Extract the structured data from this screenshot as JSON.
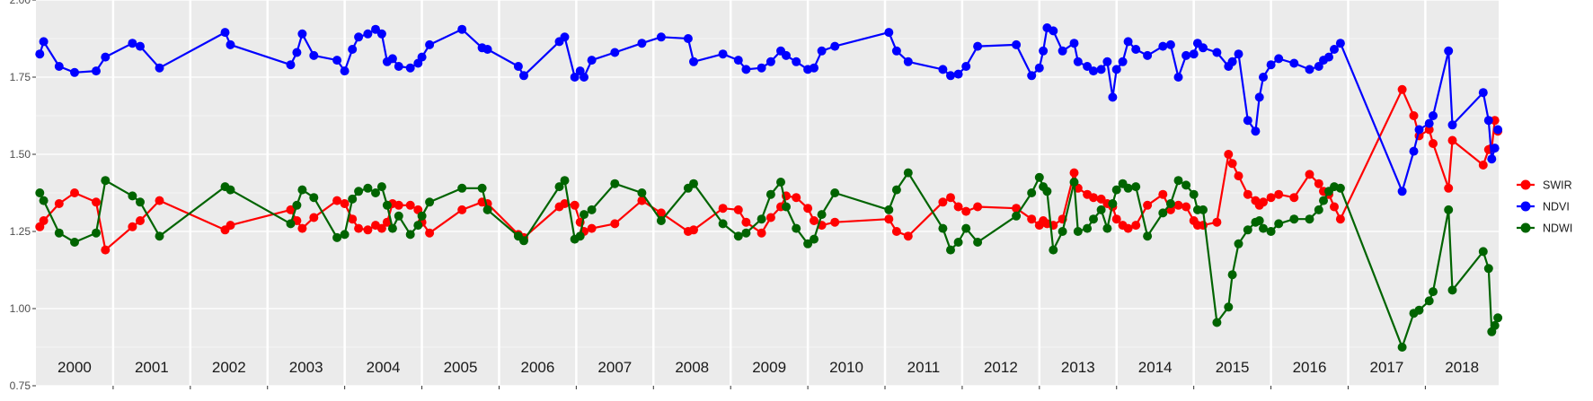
{
  "chart_data": {
    "type": "line",
    "title": "",
    "xlabel": "",
    "ylabel": "",
    "ylim": [
      0.75,
      2.0
    ],
    "yticks": [
      "0.75",
      "1.00",
      "1.25",
      "1.50",
      "1.75",
      "2.00"
    ],
    "xlim": [
      2000.0,
      2018.95
    ],
    "year_labels": [
      "2000",
      "2001",
      "2002",
      "2003",
      "2004",
      "2005",
      "2006",
      "2007",
      "2008",
      "2009",
      "2010",
      "2011",
      "2012",
      "2013",
      "2014",
      "2015",
      "2016",
      "2017",
      "2018"
    ],
    "grid": true,
    "legend_position": "right",
    "colors": {
      "panel": "#EBEBEB",
      "gridline": "#FFFFFF",
      "text": "#1A1A1A",
      "axis": "#333333"
    },
    "series": [
      {
        "name": "SWIR",
        "color": "#FF0000",
        "x": [
          2000.05,
          2000.1,
          2000.3,
          2000.5,
          2000.78,
          2000.9,
          2001.25,
          2001.35,
          2001.6,
          2002.45,
          2002.52,
          2003.3,
          2003.38,
          2003.45,
          2003.6,
          2003.9,
          2004.0,
          2004.1,
          2004.18,
          2004.3,
          2004.4,
          2004.48,
          2004.55,
          2004.62,
          2004.7,
          2004.85,
          2004.95,
          2005.0,
          2005.1,
          2005.52,
          2005.78,
          2005.85,
          2006.25,
          2006.32,
          2006.78,
          2006.85,
          2006.98,
          2007.05,
          2007.1,
          2007.2,
          2007.5,
          2007.85,
          2008.1,
          2008.45,
          2008.52,
          2008.9,
          2009.1,
          2009.2,
          2009.4,
          2009.52,
          2009.65,
          2009.72,
          2009.85,
          2010.0,
          2010.08,
          2010.18,
          2010.35,
          2011.05,
          2011.15,
          2011.3,
          2011.75,
          2011.85,
          2011.95,
          2012.05,
          2012.2,
          2012.7,
          2012.9,
          2013.0,
          2013.05,
          2013.1,
          2013.18,
          2013.3,
          2013.45,
          2013.5,
          2013.62,
          2013.7,
          2013.8,
          2013.88,
          2013.95,
          2014.0,
          2014.08,
          2014.15,
          2014.25,
          2014.4,
          2014.6,
          2014.7,
          2014.8,
          2014.9,
          2015.0,
          2015.05,
          2015.12,
          2015.3,
          2015.45,
          2015.5,
          2015.58,
          2015.7,
          2015.8,
          2015.85,
          2015.9,
          2016.0,
          2016.1,
          2016.3,
          2016.5,
          2016.62,
          2016.68,
          2016.75,
          2016.82,
          2016.9,
          2017.7,
          2017.85,
          2017.92,
          2018.05,
          2018.1,
          2018.3,
          2018.35,
          2018.75,
          2018.82,
          2018.86,
          2018.9,
          2018.94
        ],
        "y": [
          1.265,
          1.285,
          1.34,
          1.375,
          1.345,
          1.19,
          1.265,
          1.285,
          1.35,
          1.255,
          1.27,
          1.32,
          1.285,
          1.26,
          1.295,
          1.35,
          1.34,
          1.29,
          1.26,
          1.255,
          1.27,
          1.26,
          1.28,
          1.34,
          1.335,
          1.335,
          1.32,
          1.28,
          1.245,
          1.32,
          1.345,
          1.34,
          1.24,
          1.23,
          1.33,
          1.34,
          1.335,
          1.28,
          1.25,
          1.26,
          1.275,
          1.35,
          1.31,
          1.25,
          1.255,
          1.325,
          1.32,
          1.28,
          1.245,
          1.295,
          1.33,
          1.365,
          1.36,
          1.325,
          1.285,
          1.27,
          1.28,
          1.29,
          1.25,
          1.235,
          1.345,
          1.36,
          1.33,
          1.315,
          1.33,
          1.325,
          1.29,
          1.27,
          1.285,
          1.275,
          1.27,
          1.29,
          1.44,
          1.39,
          1.37,
          1.36,
          1.355,
          1.34,
          1.33,
          1.29,
          1.27,
          1.26,
          1.27,
          1.335,
          1.37,
          1.32,
          1.335,
          1.33,
          1.285,
          1.27,
          1.27,
          1.28,
          1.5,
          1.47,
          1.43,
          1.37,
          1.35,
          1.335,
          1.345,
          1.36,
          1.37,
          1.36,
          1.435,
          1.405,
          1.38,
          1.37,
          1.33,
          1.29,
          1.71,
          1.625,
          1.56,
          1.58,
          1.535,
          1.39,
          1.545,
          1.465,
          1.515,
          1.52,
          1.61,
          1.575
        ],
        "line_break_after_index": 118
      },
      {
        "name": "NDVI",
        "color": "#0000FF",
        "x": [
          2000.05,
          2000.1,
          2000.3,
          2000.5,
          2000.78,
          2000.9,
          2001.25,
          2001.35,
          2001.6,
          2002.45,
          2002.52,
          2003.3,
          2003.38,
          2003.45,
          2003.6,
          2003.9,
          2004.0,
          2004.1,
          2004.18,
          2004.3,
          2004.4,
          2004.48,
          2004.55,
          2004.62,
          2004.7,
          2004.85,
          2004.95,
          2005.0,
          2005.1,
          2005.52,
          2005.78,
          2005.85,
          2006.25,
          2006.32,
          2006.78,
          2006.85,
          2006.98,
          2007.05,
          2007.1,
          2007.2,
          2007.5,
          2007.85,
          2008.1,
          2008.45,
          2008.52,
          2008.9,
          2009.1,
          2009.2,
          2009.4,
          2009.52,
          2009.65,
          2009.72,
          2009.85,
          2010.0,
          2010.08,
          2010.18,
          2010.35,
          2011.05,
          2011.15,
          2011.3,
          2011.75,
          2011.85,
          2011.95,
          2012.05,
          2012.2,
          2012.7,
          2012.9,
          2013.0,
          2013.05,
          2013.1,
          2013.18,
          2013.3,
          2013.45,
          2013.5,
          2013.62,
          2013.7,
          2013.8,
          2013.88,
          2013.95,
          2014.0,
          2014.08,
          2014.15,
          2014.25,
          2014.4,
          2014.6,
          2014.7,
          2014.8,
          2014.9,
          2015.0,
          2015.05,
          2015.12,
          2015.3,
          2015.45,
          2015.5,
          2015.58,
          2015.7,
          2015.8,
          2015.85,
          2015.9,
          2016.0,
          2016.1,
          2016.3,
          2016.5,
          2016.62,
          2016.68,
          2016.75,
          2016.82,
          2016.9,
          2017.7,
          2017.85,
          2017.92,
          2018.05,
          2018.1,
          2018.3,
          2018.35,
          2018.75,
          2018.82,
          2018.86,
          2018.9,
          2018.94
        ],
        "y": [
          1.825,
          1.865,
          1.785,
          1.765,
          1.77,
          1.815,
          1.86,
          1.85,
          1.78,
          1.895,
          1.855,
          1.79,
          1.83,
          1.89,
          1.82,
          1.805,
          1.77,
          1.84,
          1.88,
          1.89,
          1.905,
          1.89,
          1.8,
          1.81,
          1.785,
          1.78,
          1.795,
          1.815,
          1.855,
          1.905,
          1.845,
          1.84,
          1.785,
          1.755,
          1.865,
          1.88,
          1.75,
          1.77,
          1.75,
          1.805,
          1.83,
          1.86,
          1.88,
          1.875,
          1.8,
          1.825,
          1.805,
          1.775,
          1.78,
          1.8,
          1.835,
          1.82,
          1.8,
          1.775,
          1.78,
          1.835,
          1.85,
          1.895,
          1.835,
          1.8,
          1.775,
          1.755,
          1.76,
          1.785,
          1.85,
          1.855,
          1.755,
          1.78,
          1.835,
          1.91,
          1.9,
          1.835,
          1.86,
          1.8,
          1.785,
          1.77,
          1.775,
          1.8,
          1.685,
          1.775,
          1.8,
          1.865,
          1.84,
          1.82,
          1.85,
          1.855,
          1.75,
          1.82,
          1.825,
          1.86,
          1.845,
          1.83,
          1.785,
          1.8,
          1.825,
          1.61,
          1.575,
          1.685,
          1.75,
          1.79,
          1.81,
          1.795,
          1.775,
          1.785,
          1.805,
          1.815,
          1.84,
          1.86,
          1.38,
          1.51,
          1.58,
          1.6,
          1.625,
          1.835,
          1.595,
          1.7,
          1.61,
          1.485,
          1.52,
          1.58
        ],
        "line_break_after_index": 118
      },
      {
        "name": "NDWI",
        "color": "#006400",
        "x": [
          2000.05,
          2000.1,
          2000.3,
          2000.5,
          2000.78,
          2000.9,
          2001.25,
          2001.35,
          2001.6,
          2002.45,
          2002.52,
          2003.3,
          2003.38,
          2003.45,
          2003.6,
          2003.9,
          2004.0,
          2004.1,
          2004.18,
          2004.3,
          2004.4,
          2004.48,
          2004.55,
          2004.62,
          2004.7,
          2004.85,
          2004.95,
          2005.0,
          2005.1,
          2005.52,
          2005.78,
          2005.85,
          2006.25,
          2006.32,
          2006.78,
          2006.85,
          2006.98,
          2007.05,
          2007.1,
          2007.2,
          2007.5,
          2007.85,
          2008.1,
          2008.45,
          2008.52,
          2008.9,
          2009.1,
          2009.2,
          2009.4,
          2009.52,
          2009.65,
          2009.72,
          2009.85,
          2010.0,
          2010.08,
          2010.18,
          2010.35,
          2011.05,
          2011.15,
          2011.3,
          2011.75,
          2011.85,
          2011.95,
          2012.05,
          2012.2,
          2012.7,
          2012.9,
          2013.0,
          2013.05,
          2013.1,
          2013.18,
          2013.3,
          2013.45,
          2013.5,
          2013.62,
          2013.7,
          2013.8,
          2013.88,
          2013.95,
          2014.0,
          2014.08,
          2014.15,
          2014.25,
          2014.4,
          2014.6,
          2014.7,
          2014.8,
          2014.9,
          2015.0,
          2015.05,
          2015.12,
          2015.3,
          2015.45,
          2015.5,
          2015.58,
          2015.7,
          2015.8,
          2015.85,
          2015.9,
          2016.0,
          2016.1,
          2016.3,
          2016.5,
          2016.62,
          2016.68,
          2016.75,
          2016.82,
          2016.9,
          2017.7,
          2017.85,
          2017.92,
          2018.05,
          2018.1,
          2018.3,
          2018.35,
          2018.75,
          2018.82,
          2018.86,
          2018.9,
          2018.94
        ],
        "y": [
          1.375,
          1.35,
          1.245,
          1.215,
          1.245,
          1.415,
          1.365,
          1.345,
          1.235,
          1.395,
          1.385,
          1.275,
          1.335,
          1.385,
          1.36,
          1.23,
          1.24,
          1.355,
          1.38,
          1.39,
          1.375,
          1.395,
          1.335,
          1.26,
          1.3,
          1.24,
          1.27,
          1.3,
          1.345,
          1.39,
          1.39,
          1.32,
          1.235,
          1.22,
          1.395,
          1.415,
          1.225,
          1.235,
          1.305,
          1.32,
          1.405,
          1.375,
          1.285,
          1.39,
          1.405,
          1.275,
          1.235,
          1.245,
          1.29,
          1.37,
          1.41,
          1.33,
          1.26,
          1.21,
          1.225,
          1.305,
          1.375,
          1.32,
          1.385,
          1.44,
          1.26,
          1.19,
          1.215,
          1.26,
          1.215,
          1.3,
          1.375,
          1.425,
          1.395,
          1.38,
          1.19,
          1.25,
          1.41,
          1.25,
          1.26,
          1.29,
          1.32,
          1.26,
          1.34,
          1.385,
          1.405,
          1.39,
          1.395,
          1.235,
          1.31,
          1.34,
          1.415,
          1.4,
          1.37,
          1.32,
          1.32,
          0.955,
          1.005,
          1.11,
          1.21,
          1.255,
          1.28,
          1.285,
          1.26,
          1.25,
          1.275,
          1.29,
          1.29,
          1.32,
          1.35,
          1.38,
          1.395,
          1.39,
          0.875,
          0.985,
          0.995,
          1.025,
          1.055,
          1.32,
          1.06,
          1.185,
          1.13,
          0.925,
          0.945,
          0.97
        ],
        "line_break_after_index": 118
      }
    ]
  }
}
